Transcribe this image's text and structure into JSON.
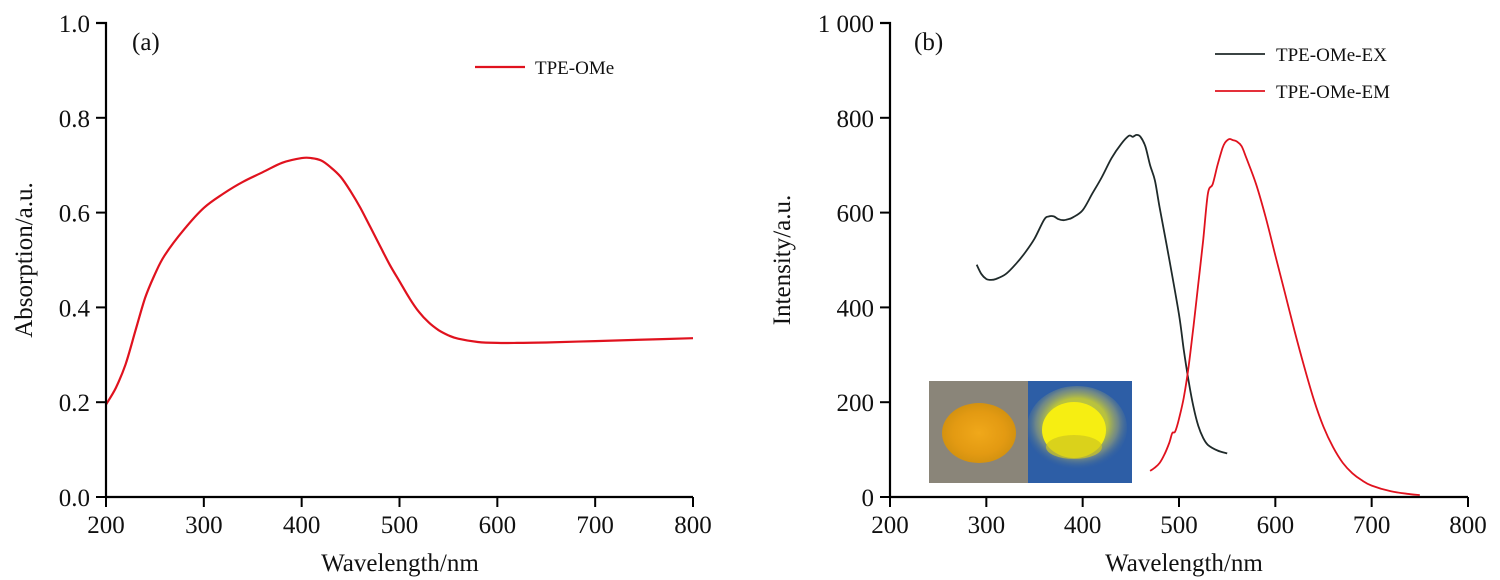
{
  "chart_data": [
    {
      "type": "line",
      "panel_label": "(a)",
      "title": "",
      "xlabel": "Wavelength/nm",
      "ylabel": "Absorption/a.u.",
      "xlim": [
        200,
        800
      ],
      "ylim": [
        0.0,
        1.0
      ],
      "xticks": [
        200,
        300,
        400,
        500,
        600,
        700,
        800
      ],
      "xtick_labels": [
        "200",
        "300",
        "400",
        "500",
        "600",
        "700",
        "800"
      ],
      "yticks": [
        0.0,
        0.2,
        0.4,
        0.6,
        0.8,
        1.0
      ],
      "ytick_labels": [
        "0.0",
        "0.2",
        "0.4",
        "0.6",
        "0.8",
        "1.0"
      ],
      "grid": false,
      "legend_position": "top-right",
      "series": [
        {
          "name": "TPE-OMe",
          "color": "#e0121e",
          "x": [
            200,
            210,
            220,
            230,
            240,
            250,
            260,
            280,
            300,
            320,
            340,
            360,
            380,
            400,
            410,
            420,
            430,
            440,
            450,
            460,
            470,
            480,
            490,
            500,
            510,
            520,
            530,
            540,
            550,
            560,
            580,
            600,
            620,
            650,
            700,
            750,
            800
          ],
          "y": [
            0.195,
            0.23,
            0.28,
            0.35,
            0.42,
            0.47,
            0.51,
            0.565,
            0.61,
            0.64,
            0.665,
            0.685,
            0.705,
            0.715,
            0.715,
            0.71,
            0.695,
            0.675,
            0.645,
            0.61,
            0.57,
            0.53,
            0.49,
            0.455,
            0.42,
            0.39,
            0.368,
            0.352,
            0.341,
            0.334,
            0.327,
            0.325,
            0.325,
            0.326,
            0.329,
            0.332,
            0.335
          ]
        }
      ]
    },
    {
      "type": "line",
      "panel_label": "(b)",
      "title": "",
      "xlabel": "Wavelength/nm",
      "ylabel": "Intensity/a.u.",
      "xlim": [
        200,
        800
      ],
      "ylim": [
        0,
        1000
      ],
      "xticks": [
        200,
        300,
        400,
        500,
        600,
        700,
        800
      ],
      "xtick_labels": [
        "200",
        "300",
        "400",
        "500",
        "600",
        "700",
        "800"
      ],
      "yticks": [
        0,
        200,
        400,
        600,
        800,
        1000
      ],
      "ytick_labels": [
        "0",
        "200",
        "400",
        "600",
        "800",
        "1 000"
      ],
      "grid": false,
      "legend_position": "top-right",
      "inset": "photograph of yellow powder under daylight (left, gray background) and under UV light (right, blue background, bright yellow emission)",
      "series": [
        {
          "name": "TPE-OMe-EX",
          "color": "#1f2a2a",
          "x": [
            290,
            295,
            300,
            305,
            310,
            320,
            330,
            340,
            350,
            360,
            365,
            370,
            375,
            380,
            385,
            390,
            400,
            410,
            420,
            430,
            440,
            448,
            452,
            456,
            460,
            465,
            470,
            475,
            480,
            490,
            500,
            505,
            510,
            515,
            520,
            525,
            530,
            540,
            550
          ],
          "y": [
            490,
            470,
            460,
            458,
            460,
            470,
            490,
            515,
            545,
            585,
            592,
            592,
            586,
            584,
            586,
            590,
            605,
            640,
            675,
            715,
            745,
            762,
            760,
            764,
            760,
            740,
            700,
            668,
            610,
            500,
            385,
            310,
            245,
            190,
            150,
            125,
            110,
            98,
            92
          ]
        },
        {
          "name": "TPE-OMe-EM",
          "color": "#e0121e",
          "x": [
            470,
            475,
            480,
            485,
            490,
            493,
            496,
            500,
            505,
            510,
            515,
            520,
            525,
            530,
            535,
            540,
            545,
            548,
            552,
            556,
            560,
            565,
            570,
            580,
            590,
            600,
            610,
            620,
            630,
            640,
            650,
            660,
            670,
            680,
            690,
            700,
            720,
            740,
            750
          ],
          "y": [
            55,
            62,
            72,
            90,
            115,
            135,
            138,
            165,
            210,
            275,
            360,
            450,
            540,
            640,
            660,
            700,
            735,
            748,
            755,
            753,
            750,
            740,
            715,
            660,
            590,
            510,
            430,
            350,
            275,
            205,
            148,
            105,
            72,
            50,
            35,
            24,
            12,
            6,
            4
          ]
        }
      ]
    }
  ]
}
